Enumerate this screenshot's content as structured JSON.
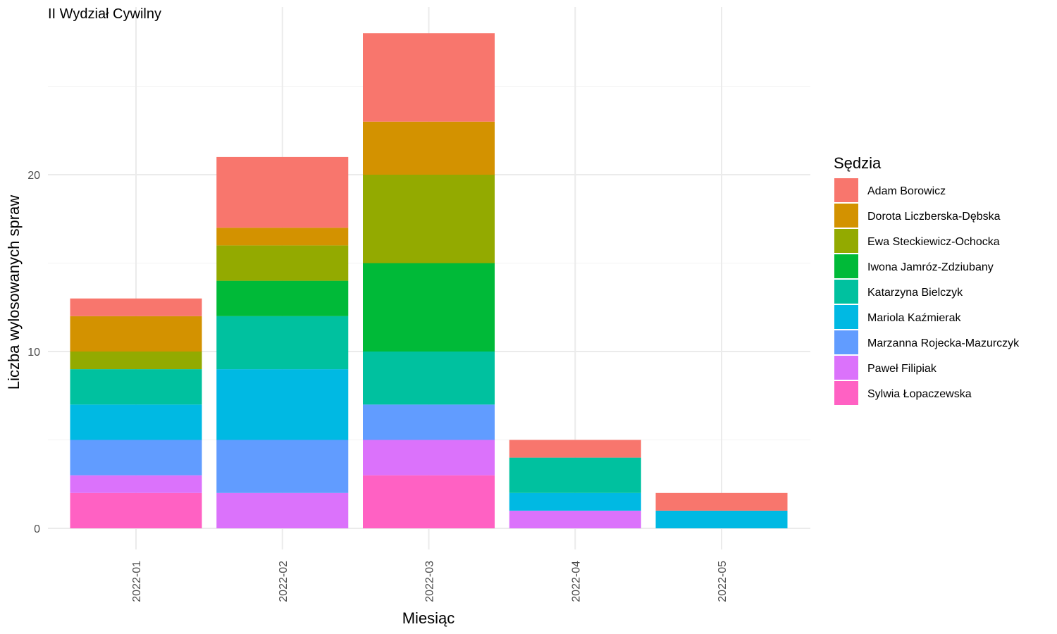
{
  "chart_data": {
    "type": "bar",
    "stacked": true,
    "title": "II Wydział Cywilny",
    "xlabel": "Miesiąc",
    "ylabel": "Liczba wylosowanych spraw",
    "ylim": [
      0,
      29
    ],
    "yticks": [
      0,
      10,
      20
    ],
    "grid": true,
    "legend_title": "Sędzia",
    "legend_position": "right",
    "categories": [
      "2022-01",
      "2022-02",
      "2022-03",
      "2022-04",
      "2022-05"
    ],
    "series": [
      {
        "name": "Adam Borowicz",
        "color": "#F8766D",
        "values": [
          1,
          4,
          5,
          1,
          1
        ]
      },
      {
        "name": "Dorota Liczberska-Dębska",
        "color": "#D39200",
        "values": [
          2,
          1,
          3,
          0,
          0
        ]
      },
      {
        "name": "Ewa Steckiewicz-Ochocka",
        "color": "#93AA00",
        "values": [
          1,
          2,
          5,
          0,
          0
        ]
      },
      {
        "name": "Iwona Jamróz-Zdziubany",
        "color": "#00BA38",
        "values": [
          0,
          2,
          5,
          0,
          0
        ]
      },
      {
        "name": "Katarzyna Bielczyk",
        "color": "#00C19F",
        "values": [
          2,
          3,
          3,
          2,
          0
        ]
      },
      {
        "name": "Mariola Kaźmierak",
        "color": "#00B9E3",
        "values": [
          2,
          4,
          0,
          1,
          1
        ]
      },
      {
        "name": "Marzanna Rojecka-Mazurczyk",
        "color": "#619CFF",
        "values": [
          2,
          3,
          2,
          0,
          0
        ]
      },
      {
        "name": "Paweł Filipiak",
        "color": "#DB72FB",
        "values": [
          1,
          2,
          2,
          1,
          0
        ]
      },
      {
        "name": "Sylwia Łopaczewska",
        "color": "#FF61C3",
        "values": [
          2,
          0,
          3,
          0,
          0
        ]
      }
    ]
  }
}
